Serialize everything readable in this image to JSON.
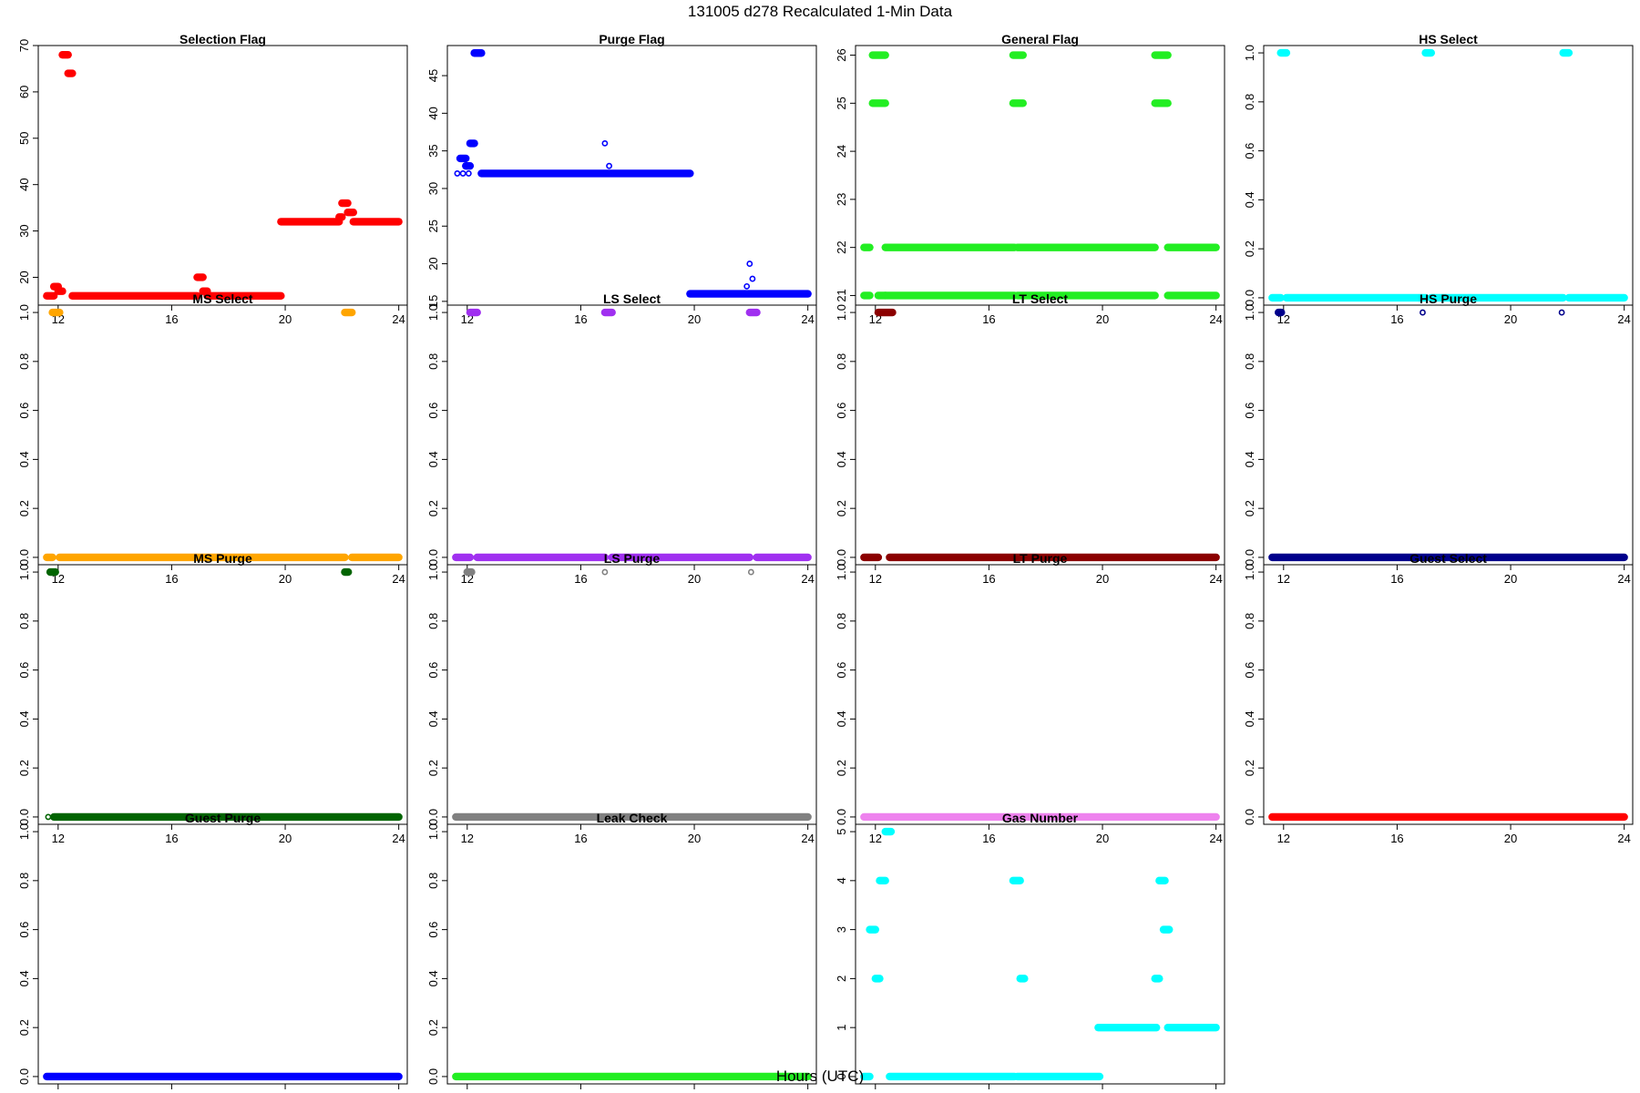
{
  "figure": {
    "title": "131005   d278   Recalculated 1-Min Data",
    "xlabel": "Hours (UTC)"
  },
  "chart_data": [
    {
      "type": "scatter",
      "title": "Selection Flag",
      "color": "#ff0000",
      "xlim": [
        11.3,
        24.3
      ],
      "ylim": [
        14,
        70
      ],
      "xticks": [
        12,
        16,
        20,
        24
      ],
      "yticks": [
        20,
        30,
        40,
        50,
        60,
        70
      ],
      "segments": [
        {
          "x0": 11.6,
          "x1": 11.85,
          "y": 16
        },
        {
          "x0": 11.85,
          "x1": 12.0,
          "y": 18
        },
        {
          "x0": 12.0,
          "x1": 12.15,
          "y": 17
        },
        {
          "x0": 12.15,
          "x1": 12.35,
          "y": 68
        },
        {
          "x0": 12.35,
          "x1": 12.5,
          "y": 64
        },
        {
          "x0": 12.5,
          "x1": 16.9,
          "y": 16
        },
        {
          "x0": 16.9,
          "x1": 17.1,
          "y": 20
        },
        {
          "x0": 17.1,
          "x1": 17.25,
          "y": 17
        },
        {
          "x0": 17.25,
          "x1": 19.85,
          "y": 16
        },
        {
          "x0": 19.85,
          "x1": 21.9,
          "y": 32
        },
        {
          "x0": 21.9,
          "x1": 22.0,
          "y": 33
        },
        {
          "x0": 22.0,
          "x1": 22.2,
          "y": 36
        },
        {
          "x0": 22.2,
          "x1": 22.4,
          "y": 34
        },
        {
          "x0": 22.4,
          "x1": 24.0,
          "y": 32
        }
      ],
      "points": []
    },
    {
      "type": "scatter",
      "title": "Purge Flag",
      "color": "#0000ff",
      "xlim": [
        11.3,
        24.3
      ],
      "ylim": [
        14.5,
        49
      ],
      "xticks": [
        12,
        16,
        20,
        24
      ],
      "yticks": [
        15,
        20,
        25,
        30,
        35,
        40,
        45
      ],
      "segments": [
        {
          "x0": 11.75,
          "x1": 11.95,
          "y": 34
        },
        {
          "x0": 11.95,
          "x1": 12.1,
          "y": 33
        },
        {
          "x0": 12.1,
          "x1": 12.25,
          "y": 36
        },
        {
          "x0": 12.25,
          "x1": 12.5,
          "y": 48
        },
        {
          "x0": 12.5,
          "x1": 19.85,
          "y": 32
        },
        {
          "x0": 19.85,
          "x1": 24.0,
          "y": 16
        }
      ],
      "points": [
        {
          "x": 11.65,
          "y": 32
        },
        {
          "x": 11.85,
          "y": 32
        },
        {
          "x": 12.05,
          "y": 32
        },
        {
          "x": 16.85,
          "y": 36
        },
        {
          "x": 17.0,
          "y": 33
        },
        {
          "x": 16.95,
          "y": 32
        },
        {
          "x": 21.85,
          "y": 17
        },
        {
          "x": 21.95,
          "y": 20
        },
        {
          "x": 22.05,
          "y": 18
        },
        {
          "x": 21.9,
          "y": 16
        },
        {
          "x": 22.0,
          "y": 16
        }
      ]
    },
    {
      "type": "scatter",
      "title": "General Flag",
      "color": "#22ee22",
      "xlim": [
        11.3,
        24.3
      ],
      "ylim": [
        20.8,
        26.2
      ],
      "xticks": [
        12,
        16,
        20,
        24
      ],
      "yticks": [
        21,
        22,
        23,
        24,
        25,
        26
      ],
      "segments": [
        {
          "x0": 11.6,
          "x1": 11.8,
          "y": 22
        },
        {
          "x0": 11.6,
          "x1": 11.8,
          "y": 21
        },
        {
          "x0": 11.9,
          "x1": 12.35,
          "y": 26
        },
        {
          "x0": 11.9,
          "x1": 12.35,
          "y": 25
        },
        {
          "x0": 12.1,
          "x1": 12.35,
          "y": 21
        },
        {
          "x0": 12.35,
          "x1": 16.9,
          "y": 22
        },
        {
          "x0": 12.35,
          "x1": 16.9,
          "y": 21
        },
        {
          "x0": 16.85,
          "x1": 17.2,
          "y": 26
        },
        {
          "x0": 16.85,
          "x1": 17.2,
          "y": 25
        },
        {
          "x0": 17.0,
          "x1": 21.85,
          "y": 22
        },
        {
          "x0": 17.0,
          "x1": 21.85,
          "y": 21
        },
        {
          "x0": 21.85,
          "x1": 22.3,
          "y": 26
        },
        {
          "x0": 21.85,
          "x1": 22.3,
          "y": 25
        },
        {
          "x0": 22.3,
          "x1": 24.0,
          "y": 22
        },
        {
          "x0": 22.3,
          "x1": 24.0,
          "y": 21
        }
      ],
      "points": []
    },
    {
      "type": "scatter",
      "title": "HS Select",
      "color": "#00ffff",
      "xlim": [
        11.3,
        24.3
      ],
      "ylim": [
        -0.03,
        1.03
      ],
      "xticks": [
        12,
        16,
        20,
        24
      ],
      "yticks": [
        0.0,
        0.2,
        0.4,
        0.6,
        0.8,
        1.0
      ],
      "segments": [
        {
          "x0": 11.6,
          "x1": 11.9,
          "y": 0
        },
        {
          "x0": 11.9,
          "x1": 12.1,
          "y": 1
        },
        {
          "x0": 12.1,
          "x1": 17.0,
          "y": 0
        },
        {
          "x0": 17.0,
          "x1": 17.2,
          "y": 1
        },
        {
          "x0": 17.2,
          "x1": 21.85,
          "y": 0
        },
        {
          "x0": 21.85,
          "x1": 22.05,
          "y": 1
        },
        {
          "x0": 22.05,
          "x1": 24.0,
          "y": 0
        }
      ],
      "points": []
    },
    {
      "type": "scatter",
      "title": "MS Select",
      "color": "#ffa500",
      "xlim": [
        11.3,
        24.3
      ],
      "ylim": [
        -0.03,
        1.03
      ],
      "xticks": [
        12,
        16,
        20,
        24
      ],
      "yticks": [
        0.0,
        0.2,
        0.4,
        0.6,
        0.8,
        1.0
      ],
      "segments": [
        {
          "x0": 11.6,
          "x1": 11.8,
          "y": 0
        },
        {
          "x0": 11.8,
          "x1": 12.05,
          "y": 1
        },
        {
          "x0": 12.05,
          "x1": 22.1,
          "y": 0
        },
        {
          "x0": 22.1,
          "x1": 22.35,
          "y": 1
        },
        {
          "x0": 22.35,
          "x1": 24.0,
          "y": 0
        }
      ],
      "points": []
    },
    {
      "type": "scatter",
      "title": "LS Select",
      "color": "#a030f0",
      "xlim": [
        11.3,
        24.3
      ],
      "ylim": [
        -0.03,
        1.03
      ],
      "xticks": [
        12,
        16,
        20,
        24
      ],
      "yticks": [
        0.0,
        0.2,
        0.4,
        0.6,
        0.8,
        1.0
      ],
      "segments": [
        {
          "x0": 11.6,
          "x1": 12.1,
          "y": 0
        },
        {
          "x0": 12.1,
          "x1": 12.35,
          "y": 1
        },
        {
          "x0": 12.35,
          "x1": 16.85,
          "y": 0
        },
        {
          "x0": 16.85,
          "x1": 17.1,
          "y": 1
        },
        {
          "x0": 17.1,
          "x1": 21.95,
          "y": 0
        },
        {
          "x0": 21.95,
          "x1": 22.2,
          "y": 1
        },
        {
          "x0": 22.2,
          "x1": 24.0,
          "y": 0
        }
      ],
      "points": []
    },
    {
      "type": "scatter",
      "title": "LT Select",
      "color": "#8b0000",
      "xlim": [
        11.3,
        24.3
      ],
      "ylim": [
        -0.03,
        1.03
      ],
      "xticks": [
        12,
        16,
        20,
        24
      ],
      "yticks": [
        0.0,
        0.2,
        0.4,
        0.6,
        0.8,
        1.0
      ],
      "segments": [
        {
          "x0": 11.6,
          "x1": 12.1,
          "y": 0
        },
        {
          "x0": 12.1,
          "x1": 12.6,
          "y": 1
        },
        {
          "x0": 12.5,
          "x1": 24.0,
          "y": 0
        }
      ],
      "points": []
    },
    {
      "type": "scatter",
      "title": "HS Purge",
      "color": "#00008b",
      "xlim": [
        11.3,
        24.3
      ],
      "ylim": [
        -0.03,
        1.03
      ],
      "xticks": [
        12,
        16,
        20,
        24
      ],
      "yticks": [
        0.0,
        0.2,
        0.4,
        0.6,
        0.8,
        1.0
      ],
      "segments": [
        {
          "x0": 11.6,
          "x1": 24.0,
          "y": 0
        },
        {
          "x0": 11.82,
          "x1": 11.92,
          "y": 1
        }
      ],
      "points": [
        {
          "x": 16.9,
          "y": 1
        },
        {
          "x": 21.8,
          "y": 1
        }
      ]
    },
    {
      "type": "scatter",
      "title": "MS Purge",
      "color": "#006400",
      "xlim": [
        11.3,
        24.3
      ],
      "ylim": [
        -0.03,
        1.03
      ],
      "xticks": [
        12,
        16,
        20,
        24
      ],
      "yticks": [
        0.0,
        0.2,
        0.4,
        0.6,
        0.8,
        1.0
      ],
      "segments": [
        {
          "x0": 11.72,
          "x1": 11.9,
          "y": 1
        },
        {
          "x0": 11.85,
          "x1": 24.0,
          "y": 0
        },
        {
          "x0": 22.1,
          "x1": 22.22,
          "y": 1
        }
      ],
      "points": [
        {
          "x": 11.65,
          "y": 0
        }
      ]
    },
    {
      "type": "scatter",
      "title": "LS Purge",
      "color": "#808080",
      "xlim": [
        11.3,
        24.3
      ],
      "ylim": [
        -0.03,
        1.03
      ],
      "xticks": [
        12,
        16,
        20,
        24
      ],
      "yticks": [
        0.0,
        0.2,
        0.4,
        0.6,
        0.8,
        1.0
      ],
      "segments": [
        {
          "x0": 11.6,
          "x1": 24.0,
          "y": 0
        },
        {
          "x0": 12.0,
          "x1": 12.15,
          "y": 1
        }
      ],
      "points": [
        {
          "x": 16.85,
          "y": 1
        },
        {
          "x": 22.0,
          "y": 1
        }
      ]
    },
    {
      "type": "scatter",
      "title": "LT Purge",
      "color": "#ee82ee",
      "xlim": [
        11.3,
        24.3
      ],
      "ylim": [
        -0.03,
        1.03
      ],
      "xticks": [
        12,
        16,
        20,
        24
      ],
      "yticks": [
        0.0,
        0.2,
        0.4,
        0.6,
        0.8,
        1.0
      ],
      "segments": [
        {
          "x0": 11.6,
          "x1": 24.0,
          "y": 0
        }
      ],
      "points": []
    },
    {
      "type": "scatter",
      "title": "Guest Select",
      "color": "#ff0000",
      "xlim": [
        11.3,
        24.3
      ],
      "ylim": [
        -0.03,
        1.03
      ],
      "xticks": [
        12,
        16,
        20,
        24
      ],
      "yticks": [
        0.0,
        0.2,
        0.4,
        0.6,
        0.8,
        1.0
      ],
      "segments": [
        {
          "x0": 11.6,
          "x1": 24.0,
          "y": 0
        }
      ],
      "points": []
    },
    {
      "type": "scatter",
      "title": "Guest Purge",
      "color": "#0000ff",
      "xlim": [
        11.3,
        24.3
      ],
      "ylim": [
        -0.03,
        1.03
      ],
      "xticks": [
        12,
        16,
        20,
        24
      ],
      "yticks": [
        0.0,
        0.2,
        0.4,
        0.6,
        0.8,
        1.0
      ],
      "segments": [
        {
          "x0": 11.6,
          "x1": 24.0,
          "y": 0
        }
      ],
      "points": []
    },
    {
      "type": "scatter",
      "title": "Leak Check",
      "color": "#22ee22",
      "xlim": [
        11.3,
        24.3
      ],
      "ylim": [
        -0.03,
        1.03
      ],
      "xticks": [
        12,
        16,
        20,
        24
      ],
      "yticks": [
        0.0,
        0.2,
        0.4,
        0.6,
        0.8,
        1.0
      ],
      "segments": [
        {
          "x0": 11.6,
          "x1": 24.0,
          "y": 0
        }
      ],
      "points": []
    },
    {
      "type": "scatter",
      "title": "Gas Number",
      "color": "#00ffff",
      "xlim": [
        11.3,
        24.3
      ],
      "ylim": [
        -0.15,
        5.15
      ],
      "xticks": [
        12,
        16,
        20,
        24
      ],
      "yticks": [
        0,
        1,
        2,
        3,
        4,
        5
      ],
      "segments": [
        {
          "x0": 11.6,
          "x1": 11.8,
          "y": 0
        },
        {
          "x0": 11.8,
          "x1": 12.0,
          "y": 3
        },
        {
          "x0": 12.0,
          "x1": 12.15,
          "y": 2
        },
        {
          "x0": 12.15,
          "x1": 12.35,
          "y": 4
        },
        {
          "x0": 12.35,
          "x1": 12.55,
          "y": 5
        },
        {
          "x0": 12.5,
          "x1": 16.9,
          "y": 0
        },
        {
          "x0": 16.85,
          "x1": 17.1,
          "y": 4
        },
        {
          "x0": 17.1,
          "x1": 17.25,
          "y": 2
        },
        {
          "x0": 17.0,
          "x1": 19.9,
          "y": 0
        },
        {
          "x0": 19.85,
          "x1": 21.9,
          "y": 1
        },
        {
          "x0": 21.85,
          "x1": 22.0,
          "y": 2
        },
        {
          "x0": 22.0,
          "x1": 22.2,
          "y": 4
        },
        {
          "x0": 22.15,
          "x1": 22.35,
          "y": 3
        },
        {
          "x0": 22.3,
          "x1": 24.0,
          "y": 1
        }
      ],
      "points": []
    }
  ]
}
